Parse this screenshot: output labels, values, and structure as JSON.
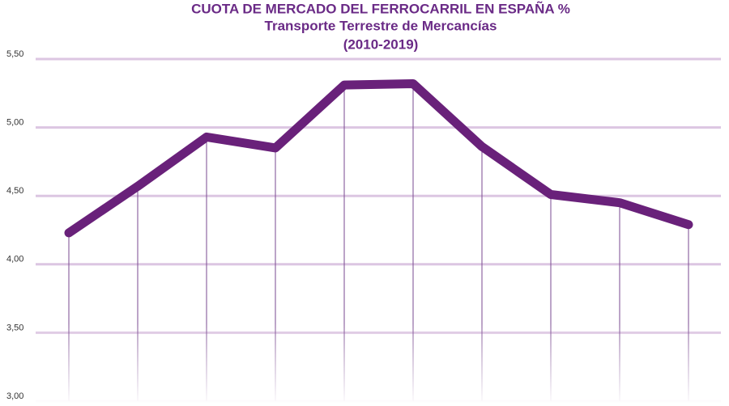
{
  "chart_data": {
    "type": "line",
    "title": "CUOTA DE MERCADO DEL FERROCARRIL EN ESPAÑA %",
    "subtitle": "Transporte Terrestre de Mercancías",
    "period": "(2010-2019)",
    "categories": [
      null,
      null,
      null,
      null,
      null,
      null,
      null,
      null,
      null,
      null
    ],
    "series": [
      {
        "color": "#69217a",
        "values": [
          4.23,
          4.57,
          4.93,
          4.85,
          5.31,
          5.32,
          4.86,
          4.51,
          4.45,
          4.29
        ]
      }
    ],
    "ylim": [
      3.0,
      5.5
    ],
    "yticks": [
      {
        "value": 3.0,
        "label": "3,00"
      },
      {
        "value": 3.5,
        "label": "3,50"
      },
      {
        "value": 4.0,
        "label": "4,00"
      },
      {
        "value": 4.5,
        "label": "4,50"
      },
      {
        "value": 5.0,
        "label": "5,00"
      },
      {
        "value": 5.5,
        "label": "5,50"
      }
    ],
    "grid": true,
    "grid_color": "#dcc6e2",
    "drop_line_color": "#7a4a90"
  }
}
